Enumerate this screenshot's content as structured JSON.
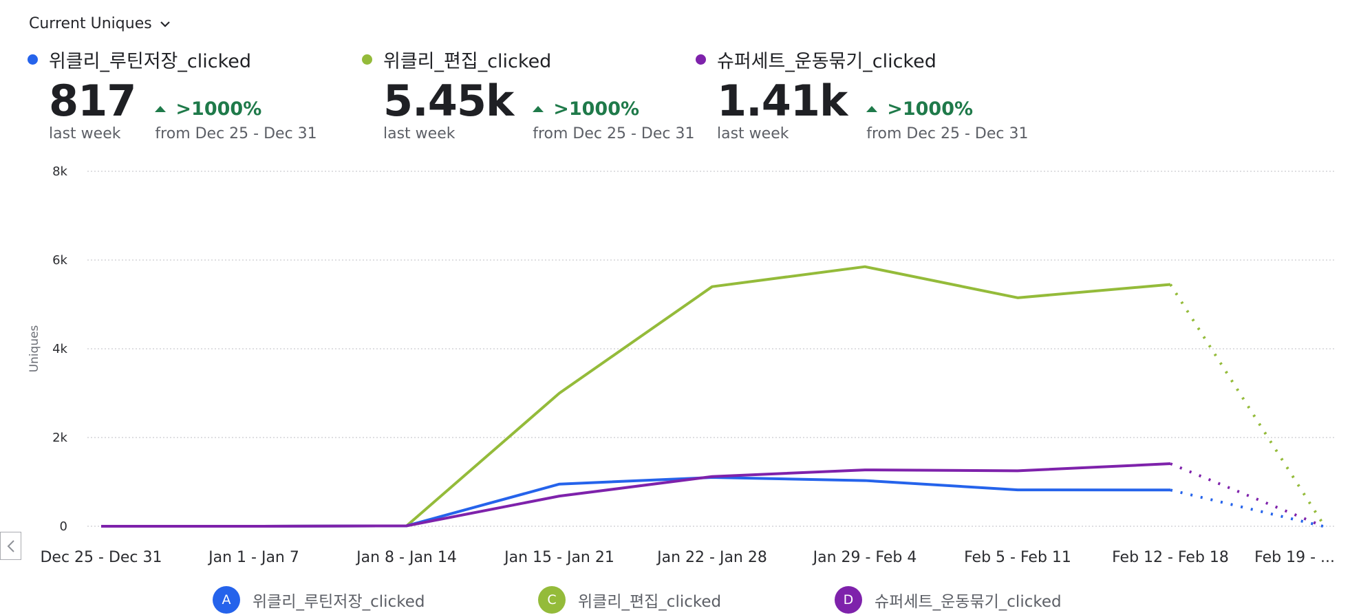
{
  "metric_selector": {
    "label": "Current Uniques",
    "icon": "chevron-down-icon"
  },
  "stats": [
    {
      "name": "위클리_루틴저장_clicked",
      "color": "#2563eb",
      "value": "817",
      "period": "last week",
      "change": ">1000%",
      "compare": "from Dec 25 - Dec 31"
    },
    {
      "name": "위클리_편집_clicked",
      "color": "#94bb3a",
      "value": "5.45k",
      "period": "last week",
      "change": ">1000%",
      "compare": "from Dec 25 - Dec 31"
    },
    {
      "name": "슈퍼세트_운동묶기_clicked",
      "color": "#7e22ab",
      "value": "1.41k",
      "period": "last week",
      "change": ">1000%",
      "compare": "from Dec 25 - Dec 31"
    }
  ],
  "nav": {
    "prev_icon": "chevron-left-icon"
  },
  "legend": [
    {
      "badge": "A",
      "label": "위클리_루틴저장_clicked",
      "color": "#2563eb"
    },
    {
      "badge": "C",
      "label": "위클리_편집_clicked",
      "color": "#94bb3a"
    },
    {
      "badge": "D",
      "label": "슈퍼세트_운동묶기_clicked",
      "color": "#7e22ab"
    }
  ],
  "chart_data": {
    "type": "line",
    "title": "",
    "xlabel": "",
    "ylabel": "Uniques",
    "ylim": [
      0,
      8000
    ],
    "y_ticks": [
      0,
      2000,
      4000,
      6000,
      8000
    ],
    "y_tick_labels": [
      "0",
      "2k",
      "4k",
      "6k",
      "8k"
    ],
    "grid": true,
    "categories": [
      "Dec 25 - Dec 31",
      "Jan 1 - Jan 7",
      "Jan 8 - Jan 14",
      "Jan 15 - Jan 21",
      "Jan 22 - Jan 28",
      "Jan 29 - Feb 4",
      "Feb 5 - Feb 11",
      "Feb 12 - Feb 18",
      "Feb 19 - ..."
    ],
    "incomplete_from_index": 7,
    "legend_position": "bottom",
    "series": [
      {
        "name": "위클리_루틴저장_clicked",
        "color": "#2563eb",
        "values": [
          0,
          0,
          10,
          950,
          1100,
          1030,
          820,
          817,
          0
        ]
      },
      {
        "name": "위클리_편집_clicked",
        "color": "#94bb3a",
        "values": [
          0,
          0,
          10,
          3000,
          5400,
          5850,
          5150,
          5450,
          50
        ]
      },
      {
        "name": "슈퍼세트_운동묶기_clicked",
        "color": "#7e22ab",
        "values": [
          0,
          0,
          10,
          680,
          1120,
          1270,
          1250,
          1410,
          0
        ]
      }
    ]
  }
}
